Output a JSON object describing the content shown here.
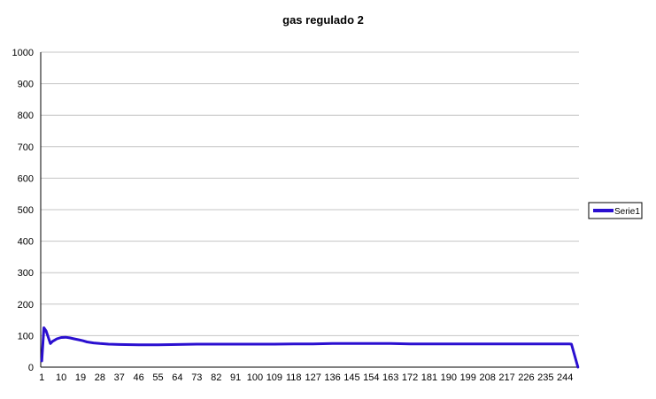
{
  "chart_data": {
    "type": "line",
    "title": "gas regulado 2",
    "xlabel": "",
    "ylabel": "",
    "ylim": [
      0,
      1000
    ],
    "yticks": [
      0,
      100,
      200,
      300,
      400,
      500,
      600,
      700,
      800,
      900,
      1000
    ],
    "x_tick_labels": [
      "1",
      "10",
      "19",
      "28",
      "37",
      "46",
      "55",
      "64",
      "73",
      "82",
      "91",
      "100",
      "109",
      "118",
      "127",
      "136",
      "145",
      "154",
      "163",
      "172",
      "181",
      "190",
      "199",
      "208",
      "217",
      "226",
      "235",
      "244"
    ],
    "x_count": 250,
    "grid": true,
    "legend_position": "right",
    "series": [
      {
        "name": "Serie1",
        "color": "#2a0fd0",
        "points": [
          [
            1,
            20
          ],
          [
            2,
            125
          ],
          [
            3,
            115
          ],
          [
            4,
            95
          ],
          [
            5,
            75
          ],
          [
            6,
            82
          ],
          [
            7,
            86
          ],
          [
            8,
            90
          ],
          [
            10,
            94
          ],
          [
            12,
            95
          ],
          [
            14,
            93
          ],
          [
            16,
            90
          ],
          [
            18,
            87
          ],
          [
            20,
            84
          ],
          [
            22,
            80
          ],
          [
            25,
            77
          ],
          [
            28,
            75
          ],
          [
            32,
            73
          ],
          [
            37,
            72
          ],
          [
            46,
            71
          ],
          [
            55,
            71
          ],
          [
            64,
            72
          ],
          [
            73,
            73
          ],
          [
            82,
            73
          ],
          [
            91,
            73
          ],
          [
            100,
            73
          ],
          [
            109,
            73
          ],
          [
            118,
            74
          ],
          [
            127,
            74
          ],
          [
            136,
            75
          ],
          [
            145,
            75
          ],
          [
            154,
            75
          ],
          [
            163,
            75
          ],
          [
            172,
            74
          ],
          [
            181,
            74
          ],
          [
            190,
            74
          ],
          [
            199,
            74
          ],
          [
            208,
            74
          ],
          [
            217,
            74
          ],
          [
            226,
            74
          ],
          [
            235,
            74
          ],
          [
            244,
            74
          ],
          [
            246,
            74
          ],
          [
            247,
            73
          ],
          [
            250,
            0
          ]
        ]
      }
    ]
  }
}
